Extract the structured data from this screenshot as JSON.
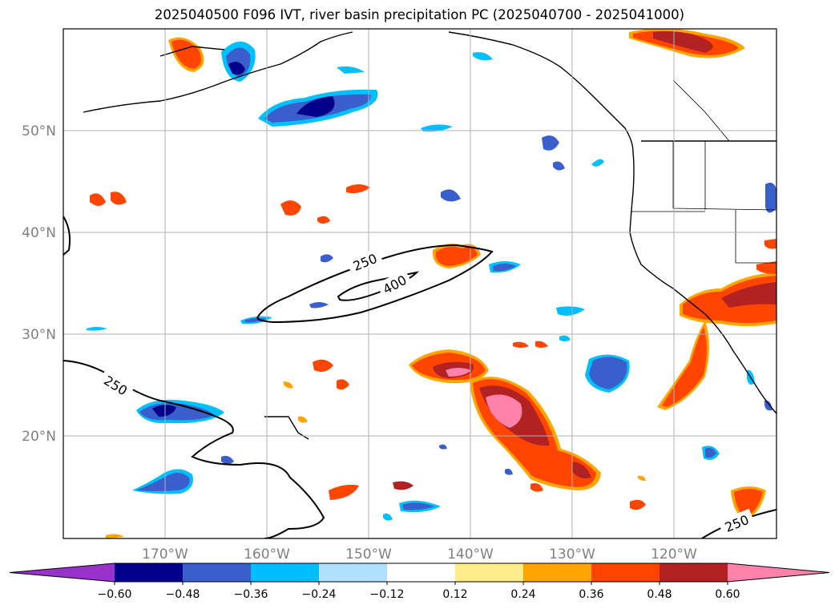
{
  "title": "2025040500 F096 IVT, river basin precipitation PC (2025040700 - 2025041000)",
  "lat_labels": [
    "50°N",
    "40°N",
    "30°N",
    "20°N"
  ],
  "lon_labels": [
    "170°W",
    "160°W",
    "150°W",
    "140°W",
    "130°W",
    "120°W"
  ],
  "contour_labels": [
    "250",
    "400",
    "250",
    "250"
  ],
  "colorbar": {
    "colors": [
      "#9932cc",
      "#00008b",
      "#3a5fcd",
      "#00bfff",
      "#b0e2ff",
      "#ffffff",
      "#ffec8b",
      "#ffa500",
      "#ff4500",
      "#b22222",
      "#ff82ab"
    ],
    "tick_labels": [
      "−0.60",
      "−0.48",
      "−0.36",
      "−0.24",
      "−0.12",
      "0.12",
      "0.24",
      "0.36",
      "0.48",
      "0.60"
    ]
  },
  "colors": {
    "pos_outer": "#ffec8b",
    "pos_mid": "#ffa500",
    "pos_core": "#ff4500",
    "pos_strong": "#b22222",
    "pos_max": "#ff82ab",
    "neg_outer": "#b0e2ff",
    "neg_mid": "#00bfff",
    "neg_core": "#3a5fcd",
    "neg_strong": "#00008b",
    "grid": "#b0b0b0",
    "tick_text": "#808080"
  }
}
